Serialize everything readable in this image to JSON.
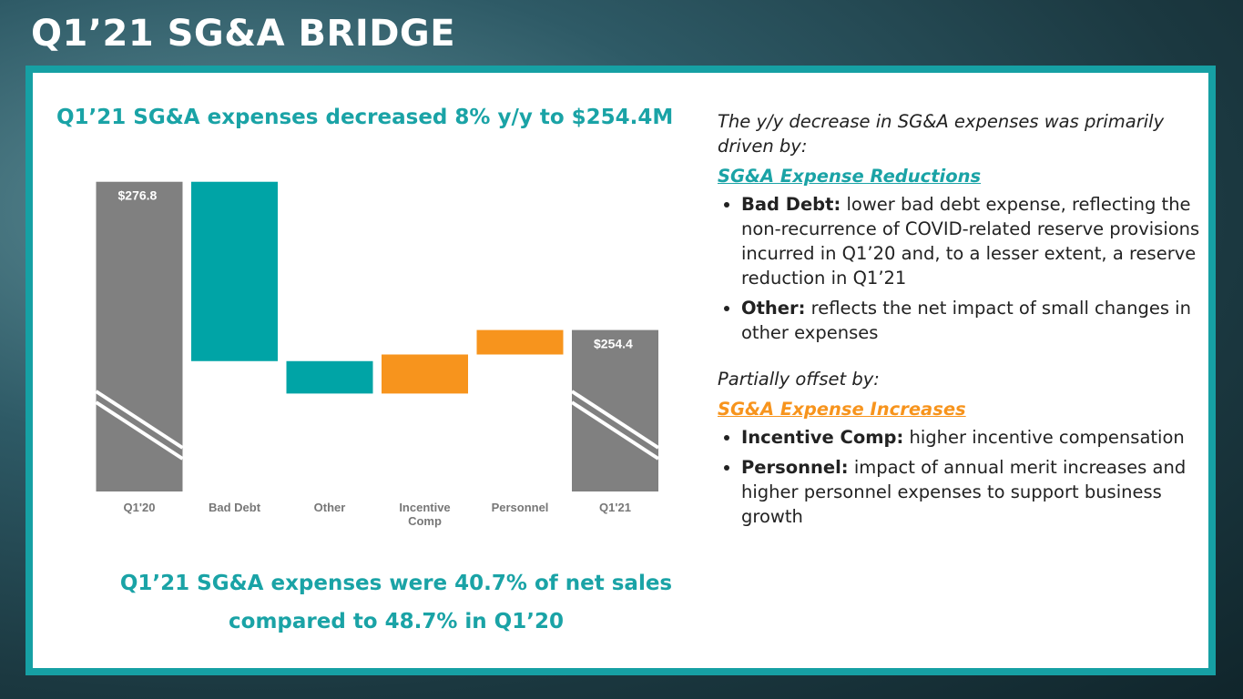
{
  "header": {
    "title": "Q1’21 SG&A BRIDGE"
  },
  "headline": "Q1’21 SG&A expenses decreased 8% y/y to $254.4M",
  "chart_data": {
    "type": "waterfall",
    "categories": [
      "Q1'20",
      "Bad Debt",
      "Other",
      "Incentive Comp",
      "Personnel",
      "Q1'21"
    ],
    "measures": [
      "total",
      "relative",
      "relative",
      "relative",
      "relative",
      "total"
    ],
    "values": [
      276.8,
      -27.1,
      -4.9,
      5.9,
      3.7,
      254.4
    ],
    "value_labels": [
      "$276.8",
      null,
      null,
      null,
      null,
      "$254.4"
    ],
    "colors": {
      "total": "#808080",
      "decrease": "#00a4a6",
      "increase": "#f7941d"
    },
    "ylim": [
      230,
      278
    ],
    "axis_break": true
  },
  "footnote": "Q1’21 SG&A expenses were 40.7% of net sales compared to 48.7% in Q1’20",
  "commentary": {
    "intro": "The y/y decrease in SG&A expenses was primarily driven by:",
    "reductions_heading": "SG&A Expense Reductions",
    "reductions": [
      {
        "term": "Bad Debt:",
        "text": "lower bad debt expense, reflecting the non-recurrence of COVID-related reserve provisions incurred in Q1’20 and, to a lesser extent, a reserve reduction in Q1’21"
      },
      {
        "term": "Other:",
        "text": "reflects the net impact of small changes in other expenses"
      }
    ],
    "offset_intro": "Partially offset by:",
    "increases_heading": "SG&A Expense Increases",
    "increases": [
      {
        "term": "Incentive Comp:",
        "text": "higher incentive compensation"
      },
      {
        "term": "Personnel:",
        "text": "impact of annual merit increases and higher personnel expenses to support business growth"
      }
    ]
  }
}
